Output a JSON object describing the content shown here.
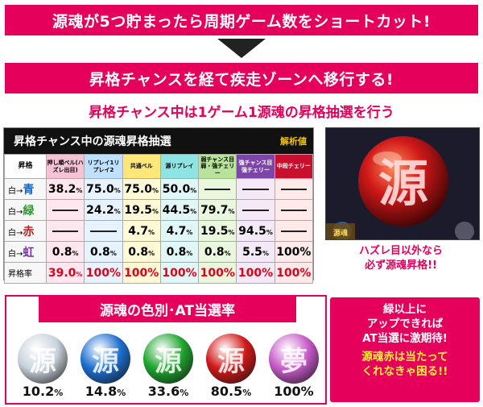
{
  "banner1": "源魂が5つ貯まったら周期ゲーム数をショートカット!",
  "banner2": "昇格チャンスを経て疾走ゾーンへ移行する!",
  "subhead": "昇格チャンス中は1ゲーム1源魂の昇格抽選を行う",
  "table": {
    "title": "昇格チャンス中の源魂昇格抽選",
    "note": "解析値",
    "corner": "昇格",
    "headers": [
      "押し順ベル(ハズレ出目)",
      "リプレイ1リプレイ2",
      "共通ベル",
      "源リプレイ",
      "弱チャンス目弱・強チェリー",
      "強チャンス目強チェリー",
      "中段チェリー"
    ],
    "rows": [
      {
        "label": "白→青",
        "cells": [
          "38.2%",
          "75.0%",
          "75.0%",
          "50.0%",
          "—",
          "—",
          "—"
        ]
      },
      {
        "label": "白→緑",
        "cells": [
          "—",
          "24.2%",
          "19.5%",
          "44.5%",
          "79.7%",
          "—",
          "—"
        ]
      },
      {
        "label": "白→赤",
        "cells": [
          "—",
          "—",
          "4.7%",
          "4.7%",
          "19.5%",
          "94.5%",
          "—"
        ]
      },
      {
        "label": "白→虹",
        "cells": [
          "0.8%",
          "0.8%",
          "0.8%",
          "0.8%",
          "0.8%",
          "5.5%",
          "100%"
        ]
      },
      {
        "label": "昇格率",
        "cells": [
          "39.0%",
          "100%",
          "100%",
          "100%",
          "100%",
          "100%",
          "100%"
        ]
      }
    ]
  },
  "screen": {
    "glyph": "源",
    "badge": "源魂"
  },
  "caption": [
    "ハズレ目以外なら",
    "必ず源魂昇格!!"
  ],
  "orbs": {
    "title": "源魂の色別･AT当選率",
    "items": [
      {
        "glyph": "源",
        "rate": "10.2",
        "unit": "%",
        "color": "#c9d3dc"
      },
      {
        "glyph": "源",
        "rate": "14.8",
        "unit": "%",
        "color": "#1d6fd1"
      },
      {
        "glyph": "源",
        "rate": "33.6",
        "unit": "%",
        "color": "#1fa52e"
      },
      {
        "glyph": "源",
        "rate": "80.5",
        "unit": "%",
        "color": "#d21919"
      },
      {
        "glyph": "夢",
        "rate": "100%",
        "unit": "",
        "color": "#c75ac8"
      }
    ]
  },
  "callout": {
    "lines": [
      "緑以上に",
      "アップできれば",
      "AT当選に激期待!"
    ],
    "yellow": [
      "源魂赤は当たって",
      "くれなきゃ困る!!"
    ]
  }
}
